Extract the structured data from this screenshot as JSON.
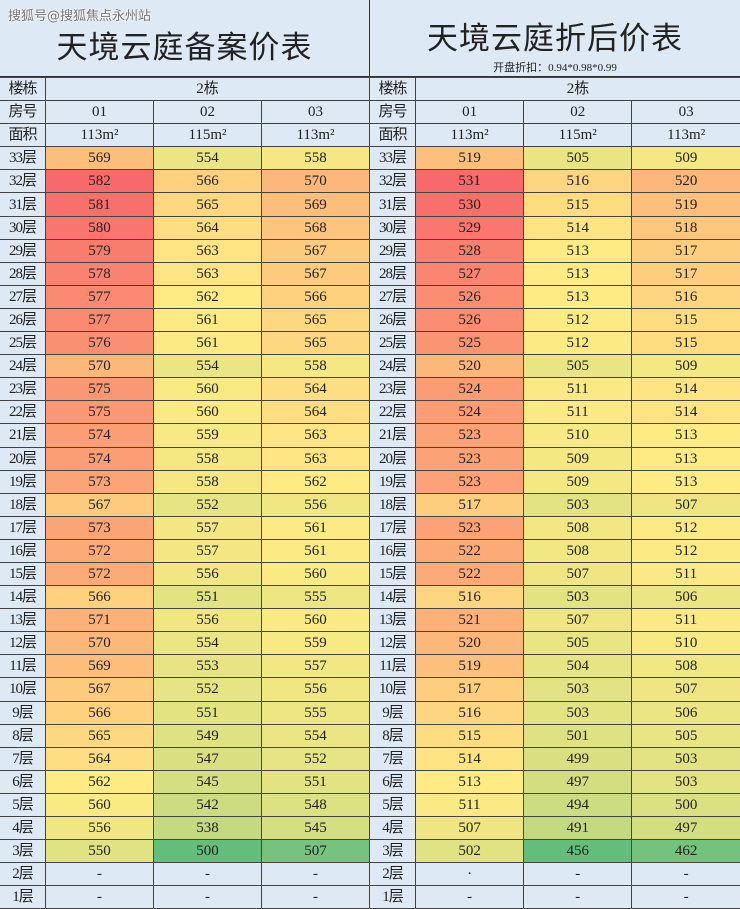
{
  "watermark": "搜狐号@搜狐焦点永州站",
  "colors": {
    "low": "#63be7b",
    "mid": "#ffeb84",
    "high": "#f8696b",
    "header_bg": "#dde9f5"
  },
  "tables": [
    {
      "title": "天境云庭备案价表",
      "subtitle": "",
      "building_label": "楼栋",
      "building": "2栋",
      "room_label": "房号",
      "rooms": [
        "01",
        "02",
        "03"
      ],
      "area_label": "面积",
      "areas": [
        "113m²",
        "115m²",
        "113m²"
      ],
      "floors": [
        {
          "floor": "33层",
          "values": [
            "569",
            "554",
            "558"
          ]
        },
        {
          "floor": "32层",
          "values": [
            "582",
            "566",
            "570"
          ]
        },
        {
          "floor": "31层",
          "values": [
            "581",
            "565",
            "569"
          ]
        },
        {
          "floor": "30层",
          "values": [
            "580",
            "564",
            "568"
          ]
        },
        {
          "floor": "29层",
          "values": [
            "579",
            "563",
            "567"
          ]
        },
        {
          "floor": "28层",
          "values": [
            "578",
            "563",
            "567"
          ]
        },
        {
          "floor": "27层",
          "values": [
            "577",
            "562",
            "566"
          ]
        },
        {
          "floor": "26层",
          "values": [
            "577",
            "561",
            "565"
          ]
        },
        {
          "floor": "25层",
          "values": [
            "576",
            "561",
            "565"
          ]
        },
        {
          "floor": "24层",
          "values": [
            "570",
            "554",
            "558"
          ]
        },
        {
          "floor": "23层",
          "values": [
            "575",
            "560",
            "564"
          ]
        },
        {
          "floor": "22层",
          "values": [
            "575",
            "560",
            "564"
          ]
        },
        {
          "floor": "21层",
          "values": [
            "574",
            "559",
            "563"
          ]
        },
        {
          "floor": "20层",
          "values": [
            "574",
            "558",
            "563"
          ]
        },
        {
          "floor": "19层",
          "values": [
            "573",
            "558",
            "562"
          ]
        },
        {
          "floor": "18层",
          "values": [
            "567",
            "552",
            "556"
          ]
        },
        {
          "floor": "17层",
          "values": [
            "573",
            "557",
            "561"
          ]
        },
        {
          "floor": "16层",
          "values": [
            "572",
            "557",
            "561"
          ]
        },
        {
          "floor": "15层",
          "values": [
            "572",
            "556",
            "560"
          ]
        },
        {
          "floor": "14层",
          "values": [
            "566",
            "551",
            "555"
          ]
        },
        {
          "floor": "13层",
          "values": [
            "571",
            "556",
            "560"
          ]
        },
        {
          "floor": "12层",
          "values": [
            "570",
            "554",
            "559"
          ]
        },
        {
          "floor": "11层",
          "values": [
            "569",
            "553",
            "557"
          ]
        },
        {
          "floor": "10层",
          "values": [
            "567",
            "552",
            "556"
          ]
        },
        {
          "floor": "9层",
          "values": [
            "566",
            "551",
            "555"
          ]
        },
        {
          "floor": "8层",
          "values": [
            "565",
            "549",
            "554"
          ]
        },
        {
          "floor": "7层",
          "values": [
            "564",
            "547",
            "552"
          ]
        },
        {
          "floor": "6层",
          "values": [
            "562",
            "545",
            "551"
          ]
        },
        {
          "floor": "5层",
          "values": [
            "560",
            "542",
            "548"
          ]
        },
        {
          "floor": "4层",
          "values": [
            "556",
            "538",
            "545"
          ]
        },
        {
          "floor": "3层",
          "values": [
            "550",
            "500",
            "507"
          ]
        },
        {
          "floor": "2层",
          "values": [
            "-",
            "-",
            "-"
          ]
        },
        {
          "floor": "1层",
          "values": [
            "-",
            "-",
            "-"
          ]
        }
      ]
    },
    {
      "title": "天境云庭折后价表",
      "subtitle": "开盘折扣：0.94*0.98*0.99",
      "building_label": "楼栋",
      "building": "2栋",
      "room_label": "房号",
      "rooms": [
        "01",
        "02",
        "03"
      ],
      "area_label": "面积",
      "areas": [
        "113m²",
        "115m²",
        "113m²"
      ],
      "floors": [
        {
          "floor": "33层",
          "values": [
            "519",
            "505",
            "509"
          ]
        },
        {
          "floor": "32层",
          "values": [
            "531",
            "516",
            "520"
          ]
        },
        {
          "floor": "31层",
          "values": [
            "530",
            "515",
            "519"
          ]
        },
        {
          "floor": "30层",
          "values": [
            "529",
            "514",
            "518"
          ]
        },
        {
          "floor": "29层",
          "values": [
            "528",
            "513",
            "517"
          ]
        },
        {
          "floor": "28层",
          "values": [
            "527",
            "513",
            "517"
          ]
        },
        {
          "floor": "27层",
          "values": [
            "526",
            "513",
            "516"
          ]
        },
        {
          "floor": "26层",
          "values": [
            "526",
            "512",
            "515"
          ]
        },
        {
          "floor": "25层",
          "values": [
            "525",
            "512",
            "515"
          ]
        },
        {
          "floor": "24层",
          "values": [
            "520",
            "505",
            "509"
          ]
        },
        {
          "floor": "23层",
          "values": [
            "524",
            "511",
            "514"
          ]
        },
        {
          "floor": "22层",
          "values": [
            "524",
            "511",
            "514"
          ]
        },
        {
          "floor": "21层",
          "values": [
            "523",
            "510",
            "513"
          ]
        },
        {
          "floor": "20层",
          "values": [
            "523",
            "509",
            "513"
          ]
        },
        {
          "floor": "19层",
          "values": [
            "523",
            "509",
            "513"
          ]
        },
        {
          "floor": "18层",
          "values": [
            "517",
            "503",
            "507"
          ]
        },
        {
          "floor": "17层",
          "values": [
            "523",
            "508",
            "512"
          ]
        },
        {
          "floor": "16层",
          "values": [
            "522",
            "508",
            "512"
          ]
        },
        {
          "floor": "15层",
          "values": [
            "522",
            "507",
            "511"
          ]
        },
        {
          "floor": "14层",
          "values": [
            "516",
            "503",
            "506"
          ]
        },
        {
          "floor": "13层",
          "values": [
            "521",
            "507",
            "511"
          ]
        },
        {
          "floor": "12层",
          "values": [
            "520",
            "505",
            "510"
          ]
        },
        {
          "floor": "11层",
          "values": [
            "519",
            "504",
            "508"
          ]
        },
        {
          "floor": "10层",
          "values": [
            "517",
            "503",
            "507"
          ]
        },
        {
          "floor": "9层",
          "values": [
            "516",
            "503",
            "506"
          ]
        },
        {
          "floor": "8层",
          "values": [
            "515",
            "501",
            "505"
          ]
        },
        {
          "floor": "7层",
          "values": [
            "514",
            "499",
            "503"
          ]
        },
        {
          "floor": "6层",
          "values": [
            "513",
            "497",
            "503"
          ]
        },
        {
          "floor": "5层",
          "values": [
            "511",
            "494",
            "500"
          ]
        },
        {
          "floor": "4层",
          "values": [
            "507",
            "491",
            "497"
          ]
        },
        {
          "floor": "3层",
          "values": [
            "502",
            "456",
            "462"
          ]
        },
        {
          "floor": "2层",
          "values": [
            "·",
            "-",
            "-"
          ]
        },
        {
          "floor": "1层",
          "values": [
            "-",
            "-",
            "-"
          ]
        }
      ]
    }
  ]
}
